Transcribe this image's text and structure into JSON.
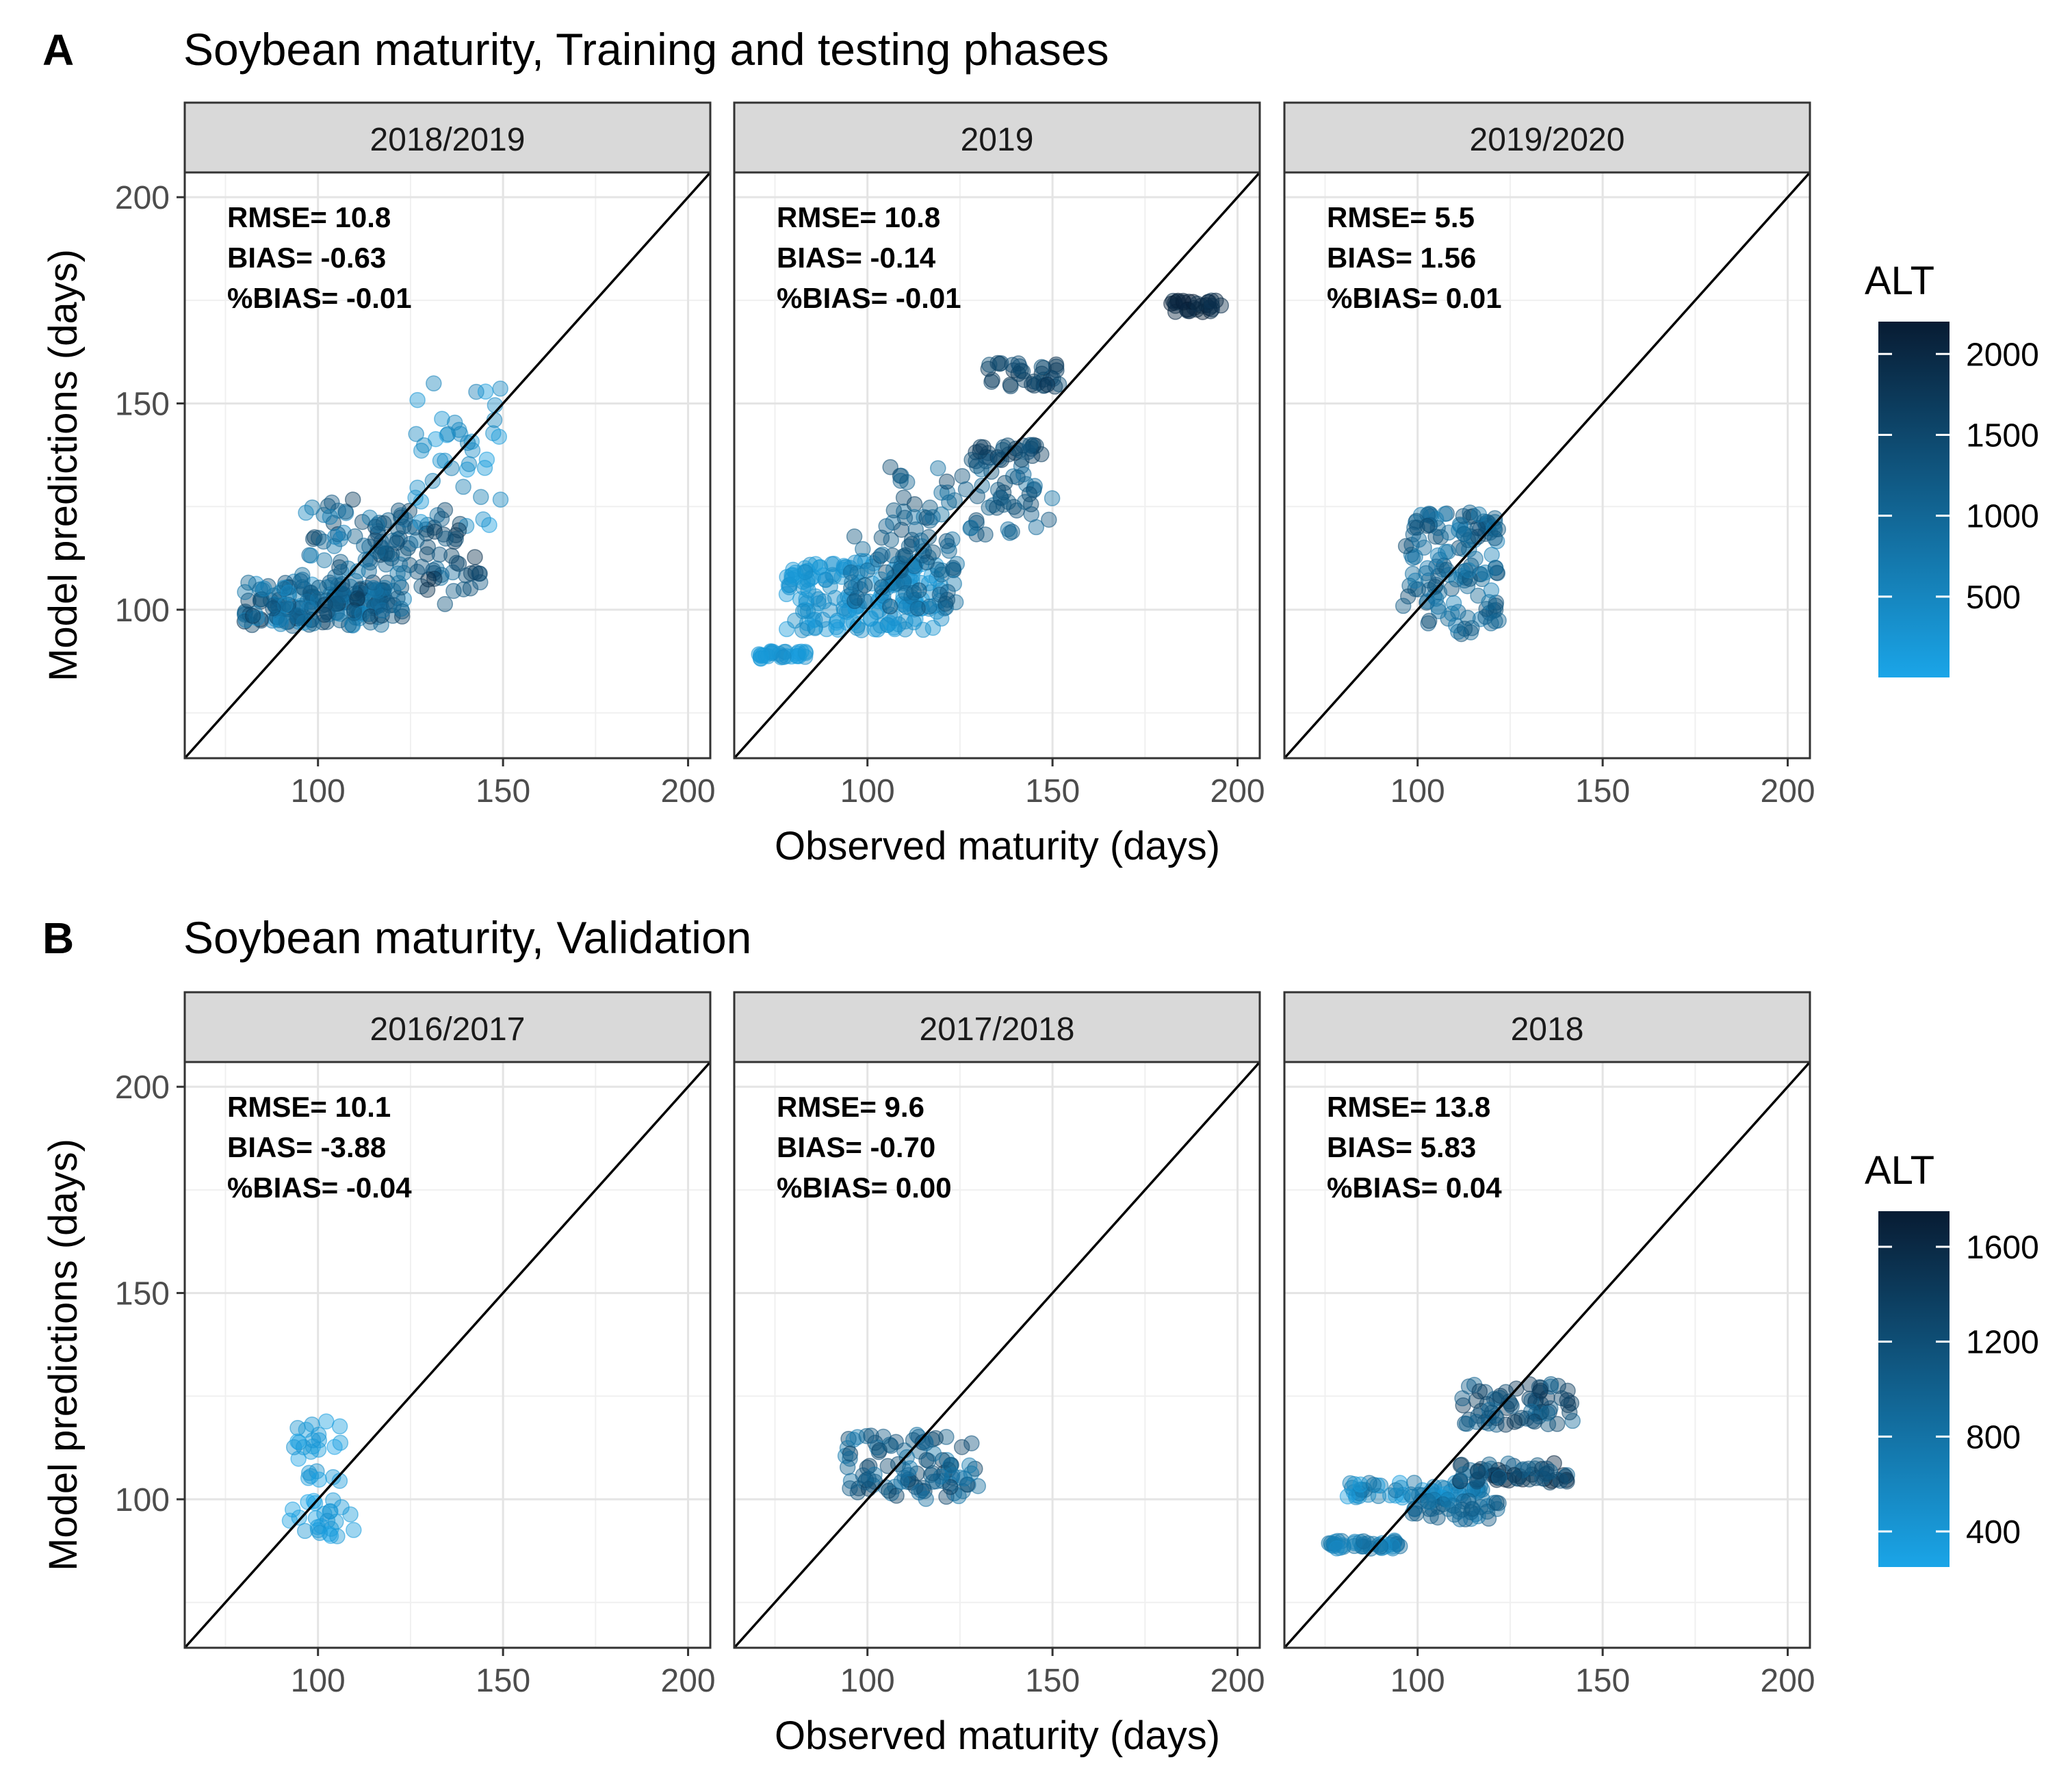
{
  "figure": {
    "shared": {
      "xlabel": "Observed maturity (days)",
      "ylabel": "Model predictions (days)",
      "xlim": [
        64,
        206
      ],
      "ylim": [
        64,
        206
      ],
      "xticks": [
        100,
        150,
        200
      ],
      "yticks": [
        100,
        150,
        200
      ],
      "grid": true,
      "reference_line": "1:1"
    },
    "color_low": "#1aa5e8",
    "color_high": "#081c33",
    "line_color": "#000000"
  },
  "chart_data": [
    {
      "type": "scatter",
      "panel_letter": "A",
      "title": "Soybean maturity, Training and testing phases",
      "legend": {
        "title": "ALT",
        "range": [
          0,
          2200
        ],
        "ticks": [
          500,
          1000,
          1500,
          2000
        ],
        "placement": "right"
      },
      "facets": [
        {
          "label": "2018/2019",
          "stats": [
            "RMSE= 10.8",
            "BIAS= -0.63",
            "%BIAS= -0.01"
          ],
          "clusters": [
            {
              "x": [
                80,
                118
              ],
              "y": [
                96,
                107
              ],
              "alt": [
                300,
                1800
              ],
              "n": 160
            },
            {
              "x": [
                95,
                125
              ],
              "y": [
                98,
                127
              ],
              "alt": [
                500,
                1700
              ],
              "n": 90
            },
            {
              "x": [
                115,
                140
              ],
              "y": [
                105,
                125
              ],
              "alt": [
                800,
                1600
              ],
              "n": 40
            },
            {
              "x": [
                125,
                150
              ],
              "y": [
                120,
                155
              ],
              "alt": [
                100,
                700
              ],
              "n": 40
            },
            {
              "x": [
                128,
                145
              ],
              "y": [
                100,
                120
              ],
              "alt": [
                1200,
                2000
              ],
              "n": 25
            }
          ]
        },
        {
          "label": "2019",
          "stats": [
            "RMSE= 10.8",
            "BIAS= -0.14",
            "%BIAS= -0.01"
          ],
          "clusters": [
            {
              "x": [
                70,
                84
              ],
              "y": [
                88,
                90
              ],
              "alt": [
                100,
                400
              ],
              "n": 30
            },
            {
              "x": [
                78,
                120
              ],
              "y": [
                95,
                112
              ],
              "alt": [
                100,
                500
              ],
              "n": 170
            },
            {
              "x": [
                95,
                125
              ],
              "y": [
                100,
                118
              ],
              "alt": [
                700,
                1500
              ],
              "n": 70
            },
            {
              "x": [
                105,
                150
              ],
              "y": [
                118,
                135
              ],
              "alt": [
                800,
                1600
              ],
              "n": 70
            },
            {
              "x": [
                128,
                150
              ],
              "y": [
                136,
                140
              ],
              "alt": [
                1200,
                1800
              ],
              "n": 30
            },
            {
              "x": [
                132,
                152
              ],
              "y": [
                154,
                160
              ],
              "alt": [
                1300,
                1900
              ],
              "n": 35
            },
            {
              "x": [
                182,
                196
              ],
              "y": [
                172,
                175
              ],
              "alt": [
                1800,
                2200
              ],
              "n": 30
            }
          ]
        },
        {
          "label": "2019/2020",
          "stats": [
            "RMSE= 5.5",
            "BIAS= 1.56",
            "%BIAS= 0.01"
          ],
          "clusters": [
            {
              "x": [
                96,
                122
              ],
              "y": [
                94,
                124
              ],
              "alt": [
                600,
                1500
              ],
              "n": 140
            }
          ]
        }
      ]
    },
    {
      "type": "scatter",
      "panel_letter": "B",
      "title": "Soybean maturity, Validation",
      "legend": {
        "title": "ALT",
        "range": [
          250,
          1750
        ],
        "ticks": [
          400,
          800,
          1200,
          1600
        ],
        "placement": "right"
      },
      "facets": [
        {
          "label": "2016/2017",
          "stats": [
            "RMSE= 10.1",
            "BIAS= -3.88",
            "%BIAS= -0.04"
          ],
          "clusters": [
            {
              "x": [
                92,
                110
              ],
              "y": [
                91,
                100
              ],
              "alt": [
                250,
                500
              ],
              "n": 25
            },
            {
              "x": [
                92,
                108
              ],
              "y": [
                104,
                119
              ],
              "alt": [
                250,
                500
              ],
              "n": 25
            }
          ]
        },
        {
          "label": "2017/2018",
          "stats": [
            "RMSE= 9.6",
            "BIAS= -0.70",
            "%BIAS= 0.00"
          ],
          "clusters": [
            {
              "x": [
                94,
                130
              ],
              "y": [
                100,
                116
              ],
              "alt": [
                700,
                1400
              ],
              "n": 100
            }
          ]
        },
        {
          "label": "2018",
          "stats": [
            "RMSE= 13.8",
            "BIAS=  5.83",
            "%BIAS= 0.04"
          ],
          "clusters": [
            {
              "x": [
                76,
                96
              ],
              "y": [
                88,
                90
              ],
              "alt": [
                500,
                900
              ],
              "n": 40
            },
            {
              "x": [
                78,
                118
              ],
              "y": [
                100,
                104
              ],
              "alt": [
                300,
                900
              ],
              "n": 60
            },
            {
              "x": [
                98,
                122
              ],
              "y": [
                95,
                100
              ],
              "alt": [
                700,
                1200
              ],
              "n": 40
            },
            {
              "x": [
                110,
                142
              ],
              "y": [
                104,
                109
              ],
              "alt": [
                900,
                1700
              ],
              "n": 60
            },
            {
              "x": [
                112,
                142
              ],
              "y": [
                118,
                128
              ],
              "alt": [
                900,
                1500
              ],
              "n": 70
            }
          ]
        }
      ]
    }
  ]
}
